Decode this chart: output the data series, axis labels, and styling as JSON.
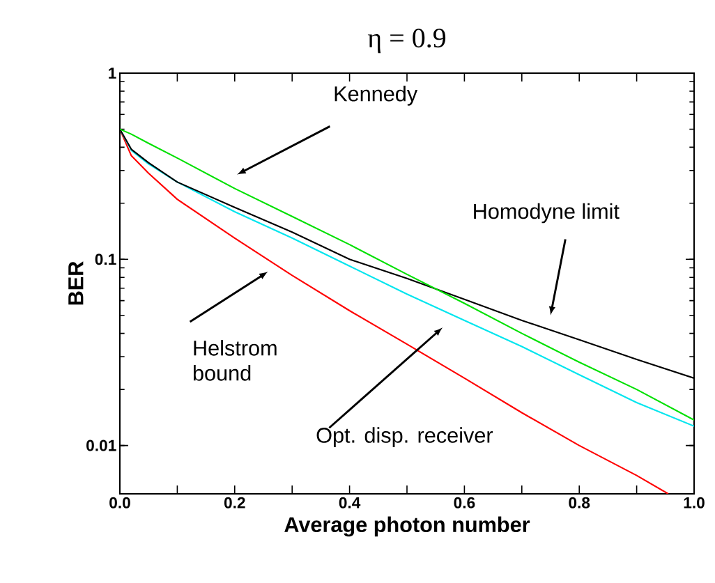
{
  "chart_data": {
    "type": "line",
    "title": "η = 0.9",
    "xlabel": "Average photon number",
    "ylabel": "BER",
    "log": "y",
    "grid": false,
    "legend": false,
    "marker": "none",
    "line_style": "solid",
    "annotations": [
      "Kennedy",
      "Homodyne limit",
      "Helstrom bound",
      "Opt. disp. receiver"
    ],
    "xlim": [
      0,
      1
    ],
    "ylim": [
      0.0055,
      1
    ],
    "xticks": [
      {
        "value": 0,
        "label": "0.0"
      },
      {
        "value": 0.1,
        "label": null
      },
      {
        "value": 0.2,
        "label": "0.2"
      },
      {
        "value": 0.3,
        "label": null
      },
      {
        "value": 0.4,
        "label": "0.4"
      },
      {
        "value": 0.5,
        "label": null
      },
      {
        "value": 0.6,
        "label": "0.6"
      },
      {
        "value": 0.7,
        "label": null
      },
      {
        "value": 0.8,
        "label": "0.8"
      },
      {
        "value": 0.9,
        "label": null
      },
      {
        "value": 1,
        "label": "1.0"
      }
    ],
    "yticks": [
      0.01,
      0.1,
      1
    ],
    "x": [
      0,
      0.02,
      0.05,
      0.1,
      0.2,
      0.3,
      0.4,
      0.5,
      0.6,
      0.7,
      0.8,
      0.9,
      1.0
    ],
    "series": [
      {
        "color": "#ff0000",
        "x": [
          0,
          0.02,
          0.05,
          0.1,
          0.2,
          0.3,
          0.4,
          0.5,
          0.6,
          0.7,
          0.8,
          0.9,
          0.955
        ],
        "values": [
          0.5,
          0.36,
          0.29,
          0.21,
          0.13,
          0.082,
          0.053,
          0.035,
          0.023,
          0.015,
          0.01,
          0.0069,
          0.0055
        ]
      },
      {
        "color": "#00e5ee",
        "values": [
          0.5,
          0.385,
          0.325,
          0.26,
          0.18,
          0.13,
          0.092,
          0.065,
          0.047,
          0.034,
          0.024,
          0.017,
          0.0127
        ]
      },
      {
        "color": "#000000",
        "values": [
          0.5,
          0.39,
          0.33,
          0.26,
          0.19,
          0.14,
          0.1,
          0.079,
          0.061,
          0.047,
          0.037,
          0.029,
          0.023
        ]
      },
      {
        "color": "#00e000",
        "values": [
          0.5,
          0.47,
          0.42,
          0.35,
          0.24,
          0.17,
          0.12,
          0.083,
          0.058,
          0.04,
          0.028,
          0.02,
          0.0137
        ]
      }
    ]
  }
}
